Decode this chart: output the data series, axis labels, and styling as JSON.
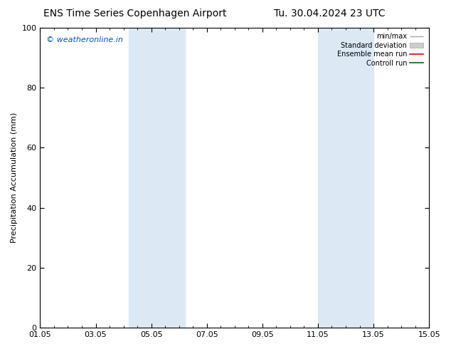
{
  "title_left": "ENS Time Series Copenhagen Airport",
  "title_right": "Tu. 30.04.2024 23 UTC",
  "ylabel": "Precipitation Accumulation (mm)",
  "watermark": "© weatheronline.in",
  "ylim": [
    0,
    100
  ],
  "yticks": [
    0,
    20,
    40,
    60,
    80,
    100
  ],
  "xticklabels": [
    "01.05",
    "03.05",
    "05.05",
    "07.05",
    "09.05",
    "11.05",
    "13.05",
    "15.05"
  ],
  "xtick_positions": [
    0,
    2,
    4,
    6,
    8,
    10,
    12,
    14
  ],
  "xlim": [
    0,
    14
  ],
  "shade_bands": [
    {
      "xmin": 3.2,
      "xmax": 5.2,
      "color": "#dce9f5"
    },
    {
      "xmin": 10.0,
      "xmax": 12.0,
      "color": "#dce9f5"
    }
  ],
  "legend_labels": [
    "min/max",
    "Standard deviation",
    "Ensemble mean run",
    "Controll run"
  ],
  "bg_color": "#ffffff",
  "title_fontsize": 10,
  "axis_fontsize": 8,
  "watermark_color": "#0055cc",
  "watermark_fontsize": 8
}
